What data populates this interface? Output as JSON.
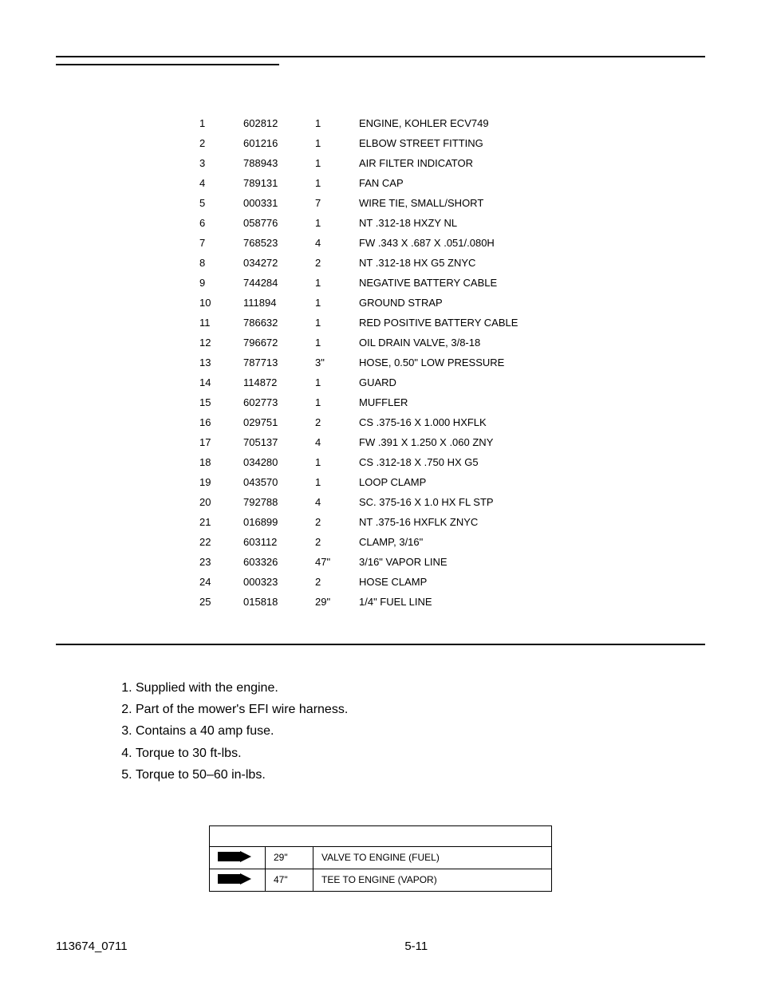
{
  "parts": {
    "rows": [
      {
        "item": "1",
        "part": "602812",
        "qty": "1",
        "desc": "ENGINE, KOHLER ECV749"
      },
      {
        "item": "2",
        "part": "601216",
        "qty": "1",
        "desc": "ELBOW STREET FITTING"
      },
      {
        "item": "3",
        "part": "788943",
        "qty": "1",
        "desc": "AIR FILTER INDICATOR"
      },
      {
        "item": "4",
        "part": "789131",
        "qty": "1",
        "desc": "FAN CAP"
      },
      {
        "item": "5",
        "part": "000331",
        "qty": "7",
        "desc": "WIRE TIE, SMALL/SHORT"
      },
      {
        "item": "6",
        "part": "058776",
        "qty": "1",
        "desc": "NT .312-18 HXZY NL"
      },
      {
        "item": "7",
        "part": "768523",
        "qty": "4",
        "desc": "FW .343 X .687 X .051/.080H"
      },
      {
        "item": "8",
        "part": "034272",
        "qty": "2",
        "desc": "NT .312-18 HX G5 ZNYC"
      },
      {
        "item": "9",
        "part": "744284",
        "qty": "1",
        "desc": "NEGATIVE BATTERY CABLE"
      },
      {
        "item": "10",
        "part": "111894",
        "qty": "1",
        "desc": "GROUND STRAP"
      },
      {
        "item": "11",
        "part": "786632",
        "qty": "1",
        "desc": "RED POSITIVE BATTERY CABLE"
      },
      {
        "item": "12",
        "part": "796672",
        "qty": "1",
        "desc": "OIL DRAIN VALVE, 3/8-18"
      },
      {
        "item": "13",
        "part": "787713",
        "qty": "3\"",
        "desc": "HOSE, 0.50\" LOW PRESSURE"
      },
      {
        "item": "14",
        "part": "114872",
        "qty": "1",
        "desc": "GUARD"
      },
      {
        "item": "15",
        "part": "602773",
        "qty": "1",
        "desc": "MUFFLER"
      },
      {
        "item": "16",
        "part": "029751",
        "qty": "2",
        "desc": "CS .375-16 X 1.000 HXFLK"
      },
      {
        "item": "17",
        "part": "705137",
        "qty": "4",
        "desc": "FW .391 X 1.250 X .060 ZNY"
      },
      {
        "item": "18",
        "part": "034280",
        "qty": "1",
        "desc": "CS .312-18 X .750 HX G5"
      },
      {
        "item": "19",
        "part": "043570",
        "qty": "1",
        "desc": "LOOP CLAMP"
      },
      {
        "item": "20",
        "part": "792788",
        "qty": "4",
        "desc": "SC. 375-16 X 1.0 HX FL STP"
      },
      {
        "item": "21",
        "part": "016899",
        "qty": "2",
        "desc": "NT .375-16 HXFLK ZNYC"
      },
      {
        "item": "22",
        "part": "603112",
        "qty": "2",
        "desc": "CLAMP, 3/16\""
      },
      {
        "item": "23",
        "part": "603326",
        "qty": "47\"",
        "desc": "3/16\" VAPOR LINE"
      },
      {
        "item": "24",
        "part": "000323",
        "qty": "2",
        "desc": "HOSE CLAMP"
      },
      {
        "item": "25",
        "part": "015818",
        "qty": "29\"",
        "desc": "1/4\" FUEL LINE"
      }
    ]
  },
  "notes": [
    "Supplied with the engine.",
    "Part of the mower's EFI wire harness.",
    "Contains a 40 amp fuse.",
    "Torque to 30 ft-lbs.",
    "Torque to 50–60 in-lbs."
  ],
  "hoses": {
    "rows": [
      {
        "length": "29\"",
        "desc": "VALVE TO ENGINE (FUEL)"
      },
      {
        "length": "47\"",
        "desc": "TEE TO ENGINE (VAPOR)"
      }
    ]
  },
  "footer": {
    "docnum": "113674_0711",
    "pagenum": "5-11"
  }
}
